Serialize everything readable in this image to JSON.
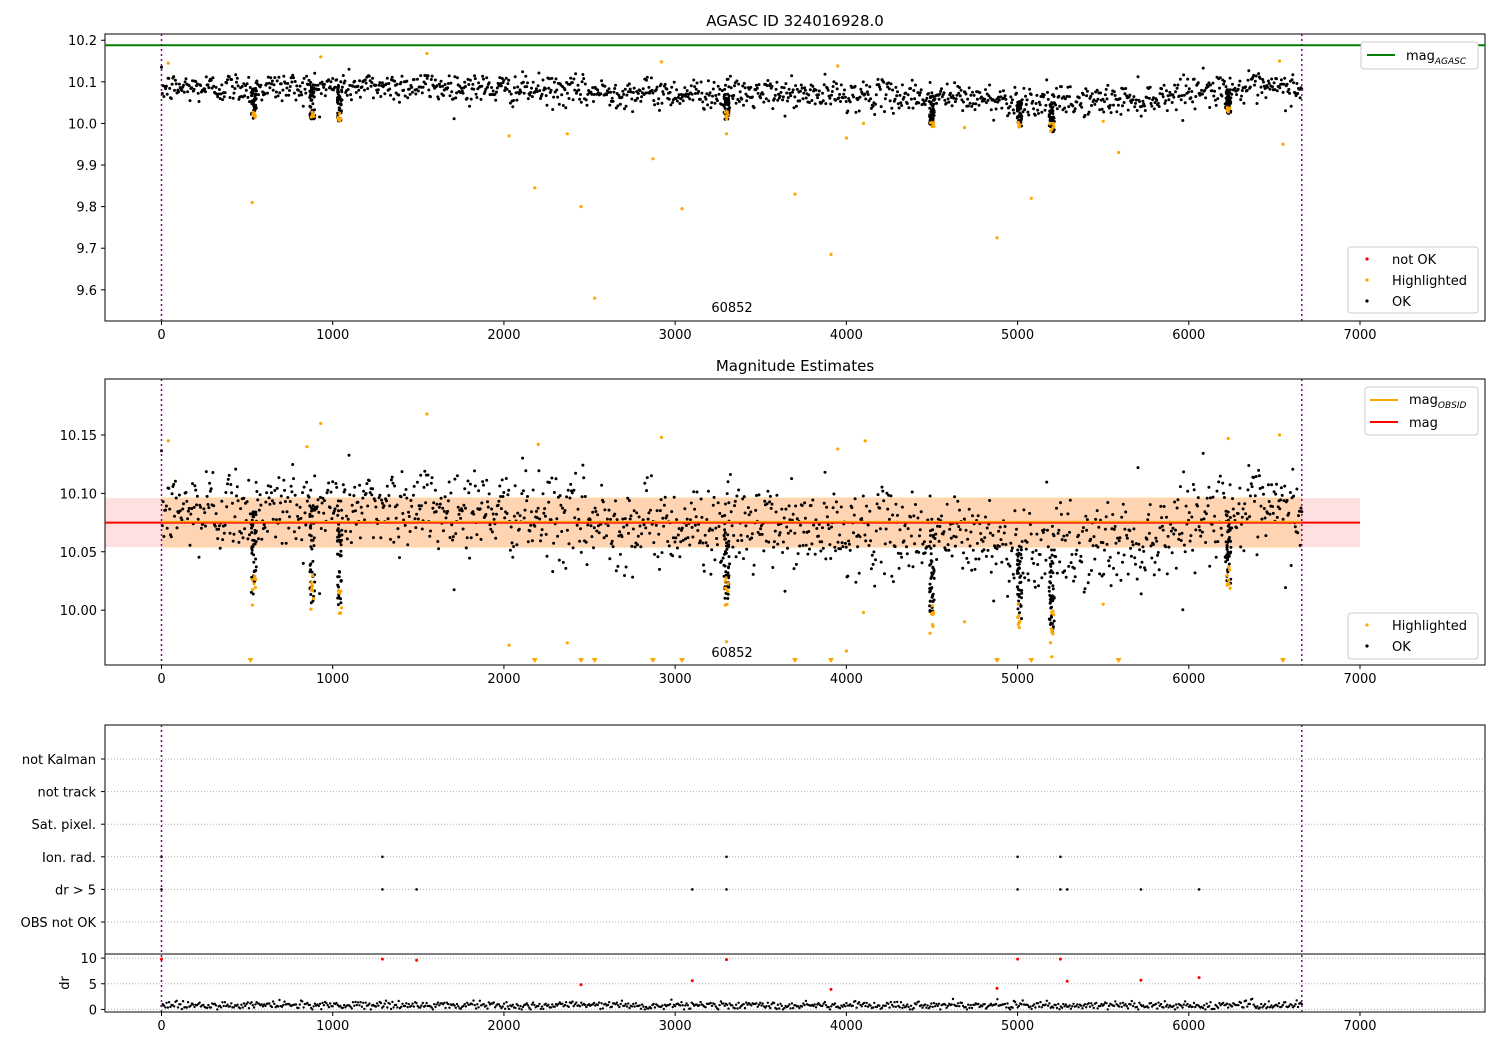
{
  "chart_data": [
    {
      "type": "scatter",
      "title": "AGASC ID 324016928.0",
      "annotation": "60852",
      "xlim": [
        -330,
        7730
      ],
      "ylim": [
        9.525,
        10.215
      ],
      "x_ticks": [
        0,
        1000,
        2000,
        3000,
        4000,
        5000,
        6000,
        7000
      ],
      "y_ticks": [
        9.6,
        9.7,
        9.8,
        9.9,
        10.0,
        10.1,
        10.2
      ],
      "y_tick_labels": [
        "9.6",
        "9.7",
        "9.8",
        "9.9",
        "10.0",
        "10.1",
        "10.2"
      ],
      "vertical_lines": [
        0,
        6660
      ],
      "reference_line": {
        "name": "mag",
        "subscript": "AGASC",
        "y": 10.188,
        "color": "#008000"
      },
      "legend_upper": {
        "position": "upper right",
        "entries": [
          {
            "name": "mag",
            "subscript": "AGASC",
            "color": "#008000"
          }
        ]
      },
      "legend_lower": {
        "position": "lower right",
        "entries": [
          {
            "name": "not OK",
            "color": "#ff0000"
          },
          {
            "name": "Highlighted",
            "color": "#ffa500"
          },
          {
            "name": "OK",
            "color": "#000000"
          }
        ]
      },
      "series": [
        {
          "name": "OK",
          "color": "#000000",
          "x_range": [
            0,
            6660
          ],
          "base": 10.085,
          "spread": 0.018,
          "trend": [
            [
              0,
              10.085
            ],
            [
              1500,
              10.09
            ],
            [
              2500,
              10.075
            ],
            [
              3500,
              10.07
            ],
            [
              4500,
              10.065
            ],
            [
              5200,
              10.05
            ],
            [
              5800,
              10.06
            ],
            [
              6000,
              10.08
            ],
            [
              6660,
              10.085
            ]
          ],
          "dips": [
            [
              540,
              10.01
            ],
            [
              880,
              10.01
            ],
            [
              1040,
              10.005
            ],
            [
              3300,
              10.01
            ],
            [
              4500,
              9.99
            ],
            [
              5010,
              9.99
            ],
            [
              5200,
              9.98
            ],
            [
              6230,
              10.02
            ]
          ]
        },
        {
          "name": "Highlighted",
          "color": "#ffa500",
          "points": [
            [
              530,
              9.81
            ],
            [
              2180,
              9.845
            ],
            [
              2370,
              9.975
            ],
            [
              2450,
              9.8
            ],
            [
              2530,
              9.58
            ],
            [
              2870,
              9.915
            ],
            [
              3040,
              9.795
            ],
            [
              3700,
              9.83
            ],
            [
              3910,
              9.685
            ],
            [
              4880,
              9.725
            ],
            [
              5080,
              9.82
            ],
            [
              5590,
              9.93
            ],
            [
              6550,
              9.95
            ],
            [
              2030,
              9.97
            ],
            [
              3300,
              9.975
            ],
            [
              4000,
              9.965
            ],
            [
              4100,
              10.0
            ],
            [
              4690,
              9.99
            ],
            [
              5500,
              10.005
            ],
            [
              40,
              10.145
            ],
            [
              930,
              10.16
            ],
            [
              1550,
              10.168
            ],
            [
              2920,
              10.148
            ],
            [
              3950,
              10.138
            ],
            [
              6530,
              10.15
            ]
          ]
        },
        {
          "name": "not OK",
          "color": "#ff0000",
          "points": []
        }
      ]
    },
    {
      "type": "scatter",
      "title": "Magnitude Estimates",
      "annotation": "60852",
      "xlim": [
        -330,
        7730
      ],
      "ylim": [
        9.953,
        10.198
      ],
      "x_ticks": [
        0,
        1000,
        2000,
        3000,
        4000,
        5000,
        6000,
        7000
      ],
      "y_ticks": [
        10.0,
        10.05,
        10.1,
        10.15
      ],
      "y_tick_labels": [
        "10.00",
        "10.05",
        "10.10",
        "10.15"
      ],
      "vertical_lines": [
        0,
        6660
      ],
      "mag_line": {
        "name": "mag",
        "y": 10.075,
        "x_range": [
          -330,
          7000
        ],
        "color": "#ff0000",
        "band": [
          10.054,
          10.096
        ]
      },
      "mag_obsid": {
        "name": "mag",
        "subscript": "OBSID",
        "y": 10.075,
        "x_range": [
          0,
          6660
        ],
        "color": "#ffa500",
        "band": [
          10.053,
          10.097
        ]
      },
      "legend_upper": {
        "position": "upper right",
        "entries": [
          {
            "name": "mag",
            "subscript": "OBSID",
            "color": "#ffa500"
          },
          {
            "name": "mag",
            "color": "#ff0000"
          }
        ]
      },
      "legend_lower": {
        "position": "lower right",
        "entries": [
          {
            "name": "Highlighted",
            "color": "#ffa500"
          },
          {
            "name": "OK",
            "color": "#000000"
          }
        ]
      },
      "clipped_markers_x": [
        520,
        2180,
        2450,
        2530,
        2870,
        3040,
        3700,
        3910,
        4880,
        5080,
        5590,
        6550
      ],
      "highlighted_points": [
        [
          40,
          10.145
        ],
        [
          930,
          10.16
        ],
        [
          1550,
          10.168
        ],
        [
          2920,
          10.148
        ],
        [
          3950,
          10.138
        ],
        [
          6530,
          10.15
        ],
        [
          850,
          10.14
        ],
        [
          2200,
          10.142
        ],
        [
          4110,
          10.145
        ],
        [
          6230,
          10.147
        ],
        [
          2030,
          9.97
        ],
        [
          2370,
          9.972
        ],
        [
          3300,
          9.973
        ],
        [
          4000,
          9.965
        ],
        [
          4690,
          9.99
        ],
        [
          5500,
          10.005
        ],
        [
          4100,
          9.998
        ],
        [
          5200,
          9.96
        ],
        [
          5010,
          9.985
        ]
      ]
    },
    {
      "type": "scatter",
      "title": "",
      "xlim": [
        -330,
        7730
      ],
      "x_ticks": [
        0,
        1000,
        2000,
        3000,
        4000,
        5000,
        6000,
        7000
      ],
      "vertical_lines": [
        0,
        6660
      ],
      "flag_categories": [
        "not Kalman",
        "not track",
        "Sat. pixel.",
        "Ion. rad.",
        "dr > 5",
        "OBS not OK"
      ],
      "flags": {
        "Ion. rad.": [
          0,
          1290,
          3300,
          5000,
          5250
        ],
        "dr > 5": [
          0,
          1290,
          1490,
          3100,
          3300,
          5000,
          5250,
          5290,
          5720,
          6060
        ]
      },
      "dr_panel": {
        "ylabel": "dr",
        "ylim": [
          -0.5,
          10.8
        ],
        "y_ticks": [
          0,
          5,
          10
        ],
        "y_tick_labels": [
          "0",
          "5",
          "10"
        ],
        "red_points": [
          [
            0,
            9.8
          ],
          [
            1290,
            9.8
          ],
          [
            1490,
            9.6
          ],
          [
            3300,
            9.7
          ],
          [
            5000,
            9.8
          ],
          [
            5250,
            9.8
          ],
          [
            3100,
            5.6
          ],
          [
            2450,
            4.8
          ],
          [
            3910,
            3.9
          ],
          [
            4880,
            4.1
          ],
          [
            5290,
            5.5
          ],
          [
            5720,
            5.7
          ],
          [
            6060,
            6.2
          ]
        ],
        "baseline": 0.8
      }
    }
  ]
}
